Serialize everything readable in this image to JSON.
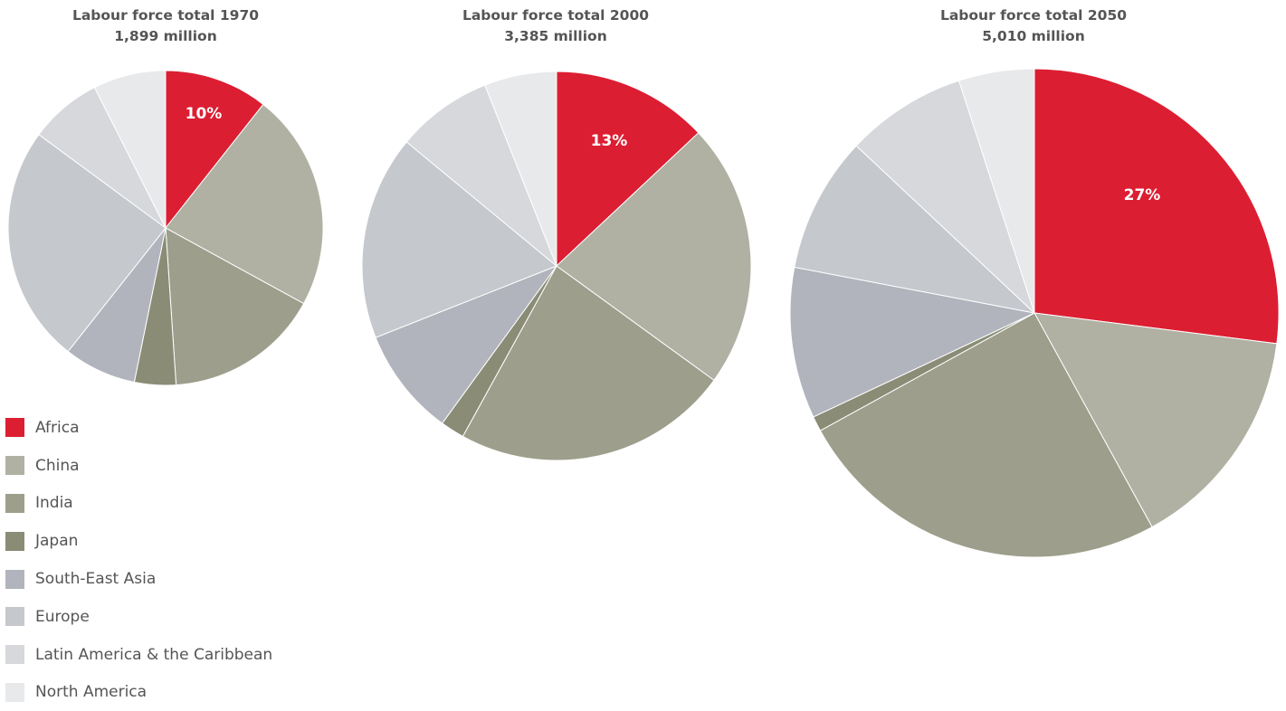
{
  "chart_data": [
    {
      "type": "pie",
      "title": "Labour force total 1970",
      "subtitle": "1,899 million",
      "categories": [
        "Africa",
        "China",
        "India",
        "Japan",
        "South-East Asia",
        "Europe",
        "Latin America & the Caribbean",
        "North America"
      ],
      "values": [
        10,
        21,
        15,
        4,
        7,
        23,
        7,
        7
      ],
      "data_labels": [
        "10%",
        "",
        "",
        "",
        "",
        "",
        "",
        ""
      ]
    },
    {
      "type": "pie",
      "title": "Labour force total 2000",
      "subtitle": "3,385 million",
      "categories": [
        "Africa",
        "China",
        "India",
        "Japan",
        "South-East Asia",
        "Europe",
        "Latin America & the Caribbean",
        "North America"
      ],
      "values": [
        13,
        22,
        23,
        2,
        9,
        17,
        8,
        6
      ],
      "data_labels": [
        "13%",
        "",
        "",
        "",
        "",
        "",
        "",
        ""
      ]
    },
    {
      "type": "pie",
      "title": "Labour force total 2050",
      "subtitle": "5,010 million",
      "categories": [
        "Africa",
        "China",
        "India",
        "Japan",
        "South-East Asia",
        "Europe",
        "Latin America & the Caribbean",
        "North America"
      ],
      "values": [
        27,
        15,
        25,
        1,
        10,
        9,
        8,
        5
      ],
      "data_labels": [
        "27%",
        "",
        "",
        "",
        "",
        "",
        "",
        ""
      ]
    }
  ],
  "legend": {
    "placement": "bottom-left",
    "items": [
      {
        "label": "Africa",
        "color": "#dc1e32"
      },
      {
        "label": "China",
        "color": "#b0b1a3"
      },
      {
        "label": "India",
        "color": "#9d9e8b"
      },
      {
        "label": "Japan",
        "color": "#8a8c76"
      },
      {
        "label": "South-East Asia",
        "color": "#b1b4bc"
      },
      {
        "label": "Europe",
        "color": "#c5c8cd"
      },
      {
        "label": "Latin America & the Caribbean",
        "color": "#d6d8dc"
      },
      {
        "label": "North America",
        "color": "#e8e9eb"
      }
    ]
  }
}
